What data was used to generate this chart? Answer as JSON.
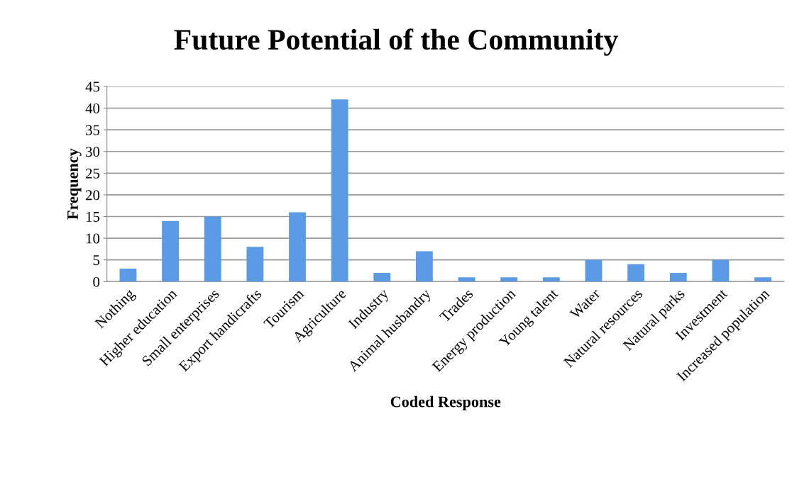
{
  "chart_data": {
    "type": "bar",
    "title": "Future Potential of the Community",
    "xlabel": "Coded Response",
    "ylabel": "Frequency",
    "categories": [
      "Nothing",
      "Higher education",
      "Small enterprises",
      "Export handicrafts",
      "Tourism",
      "Agriculture",
      "Industry",
      "Animal husbandry",
      "Trades",
      "Energy production",
      "Young talent",
      "Water",
      "Natural resources",
      "Natural parks",
      "Investment",
      "Increased population"
    ],
    "values": [
      3,
      14,
      15,
      8,
      16,
      42,
      2,
      7,
      1,
      1,
      1,
      5,
      4,
      2,
      5,
      1
    ],
    "color": "#5b9be6",
    "ylim": [
      0,
      45
    ],
    "yticks": [
      0,
      5,
      10,
      15,
      20,
      25,
      30,
      35,
      40,
      45
    ],
    "grid": "y"
  }
}
